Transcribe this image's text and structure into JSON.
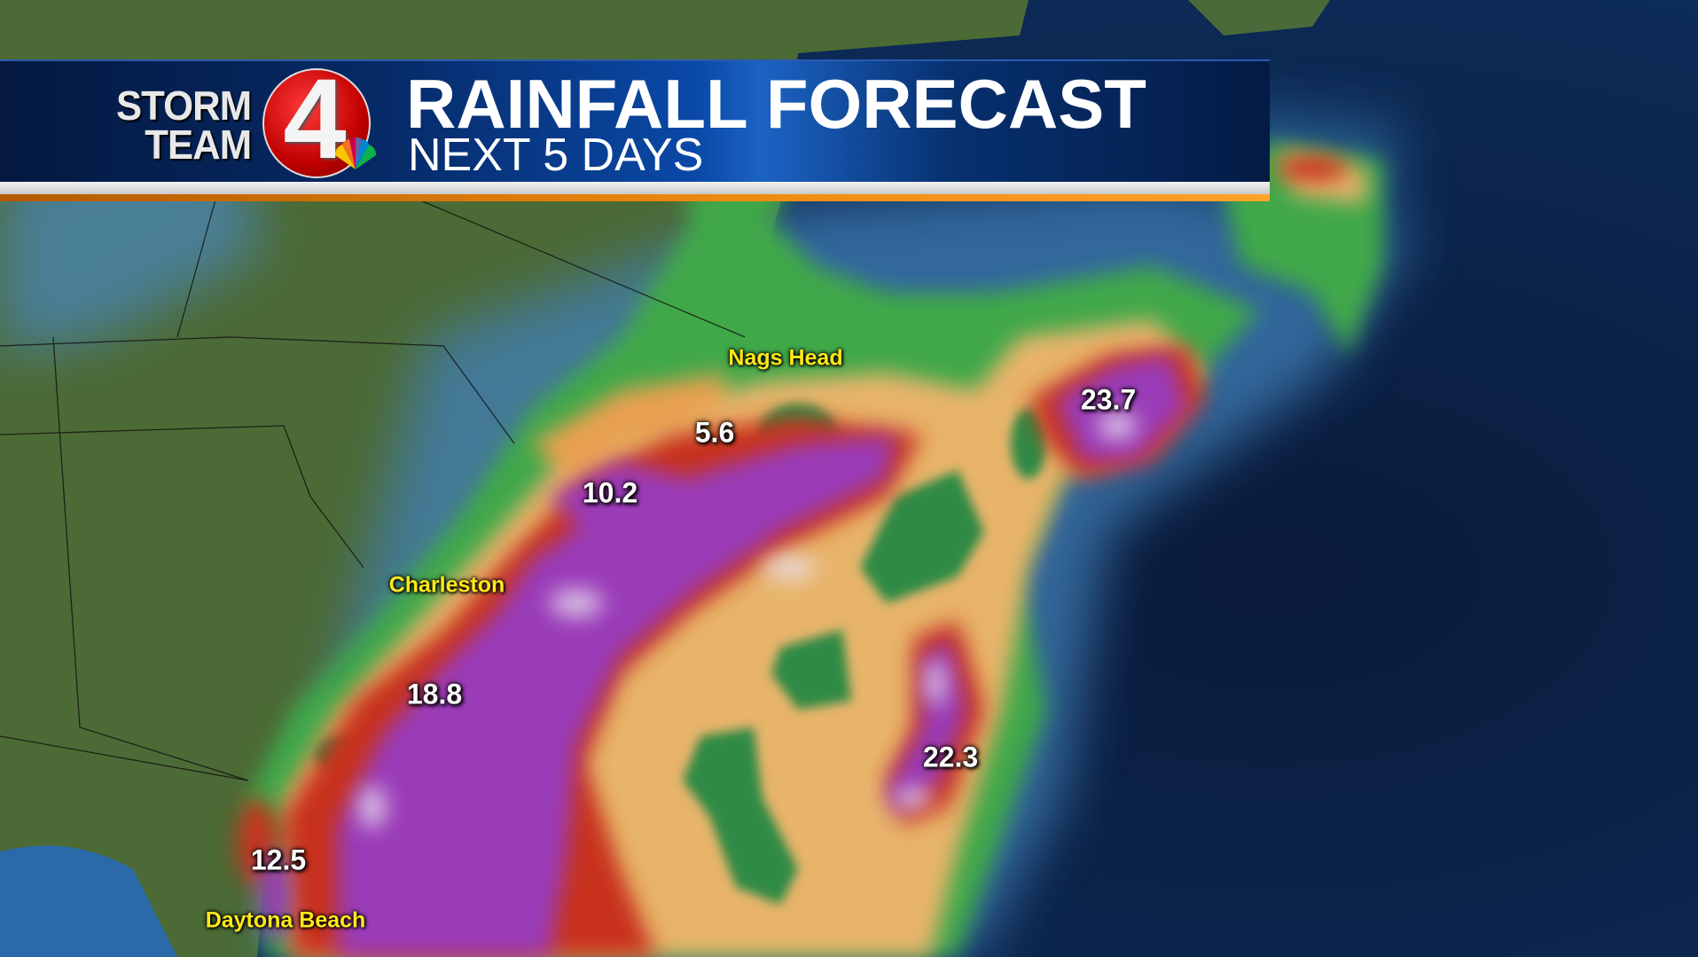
{
  "header": {
    "logo": {
      "line1": "STORM",
      "line2": "TEAM",
      "number": "4",
      "network_icon": "nbc-peacock-icon"
    },
    "title": "RAINFALL FORECAST",
    "subtitle": "NEXT 5 DAYS"
  },
  "colors": {
    "header_blue": "#062a66",
    "accent_orange": "#f08c10",
    "city_label": "#ffe81a",
    "value_label": "#ffffff",
    "rain_light": "#3fa84a",
    "rain_moderate": "#e8b46a",
    "rain_heavy": "#c8321e",
    "rain_extreme": "#9a3ab8"
  },
  "cities": [
    {
      "name": "Nags Head"
    },
    {
      "name": "Charleston"
    },
    {
      "name": "Daytona Beach"
    }
  ],
  "rainfall_values": [
    "5.6",
    "10.2",
    "18.8",
    "12.5",
    "22.3",
    "23.7"
  ]
}
